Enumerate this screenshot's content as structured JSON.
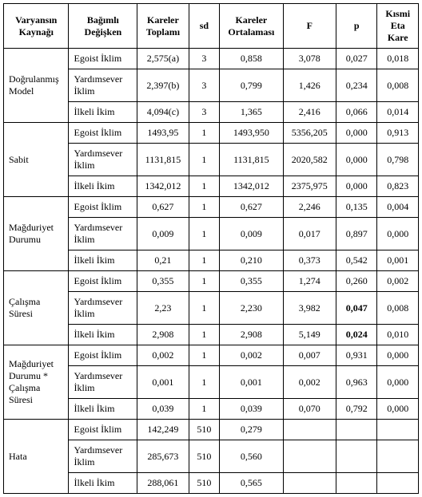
{
  "headers": {
    "c1": "Varyansın Kaynağı",
    "c2": "Bağımlı Değişken",
    "c3": "Kareler Toplamı",
    "c4": "sd",
    "c5": "Kareler Ortalaması",
    "c6": "F",
    "c7": "p",
    "c8": "Kısmi Eta Kare"
  },
  "groups": [
    {
      "source": "Doğrulanmış Model",
      "rows": [
        {
          "dv": "Egoist İklim",
          "ss": "2,575(a)",
          "sd": "3",
          "ms": "0,858",
          "f": "3,078",
          "p": "0,027",
          "eta": "0,018"
        },
        {
          "dv": "Yardımsever İklim",
          "ss": "2,397(b)",
          "sd": "3",
          "ms": "0,799",
          "f": "1,426",
          "p": "0,234",
          "eta": "0,008"
        },
        {
          "dv": "İlkeli İkim",
          "ss": "4,094(c)",
          "sd": "3",
          "ms": "1,365",
          "f": "2,416",
          "p": "0,066",
          "eta": "0,014"
        }
      ]
    },
    {
      "source": "Sabit",
      "rows": [
        {
          "dv": "Egoist İklim",
          "ss": "1493,95",
          "sd": "1",
          "ms": "1493,950",
          "f": "5356,205",
          "p": "0,000",
          "eta": "0,913"
        },
        {
          "dv": "Yardımsever İklim",
          "ss": "1131,815",
          "sd": "1",
          "ms": "1131,815",
          "f": "2020,582",
          "p": "0,000",
          "eta": "0,798"
        },
        {
          "dv": "İlkeli İkim",
          "ss": "1342,012",
          "sd": "1",
          "ms": "1342,012",
          "f": "2375,975",
          "p": "0,000",
          "eta": "0,823"
        }
      ]
    },
    {
      "source": "Mağduriyet Durumu",
      "rows": [
        {
          "dv": "Egoist İklim",
          "ss": "0,627",
          "sd": "1",
          "ms": "0,627",
          "f": "2,246",
          "p": "0,135",
          "eta": "0,004"
        },
        {
          "dv": "Yardımsever İklim",
          "ss": "0,009",
          "sd": "1",
          "ms": "0,009",
          "f": "0,017",
          "p": "0,897",
          "eta": "0,000"
        },
        {
          "dv": "İlkeli İkim",
          "ss": "0,21",
          "sd": "1",
          "ms": "0,210",
          "f": "0,373",
          "p": "0,542",
          "eta": "0,001"
        }
      ]
    },
    {
      "source": "Çalışma Süresi",
      "rows": [
        {
          "dv": "Egoist İklim",
          "ss": "0,355",
          "sd": "1",
          "ms": "0,355",
          "f": "1,274",
          "p": "0,260",
          "eta": "0,002"
        },
        {
          "dv": "Yardımsever İklim",
          "ss": "2,23",
          "sd": "1",
          "ms": "2,230",
          "f": "3,982",
          "p": "0,047",
          "pbold": true,
          "eta": "0,008"
        },
        {
          "dv": "İlkeli İkim",
          "ss": "2,908",
          "sd": "1",
          "ms": "2,908",
          "f": "5,149",
          "p": "0,024",
          "pbold": true,
          "eta": "0,010"
        }
      ]
    },
    {
      "source": "Mağduriyet Durumu * Çalışma Süresi",
      "rows": [
        {
          "dv": "Egoist İklim",
          "ss": "0,002",
          "sd": "1",
          "ms": "0,002",
          "f": "0,007",
          "p": "0,931",
          "eta": "0,000"
        },
        {
          "dv": "Yardımsever İklim",
          "ss": "0,001",
          "sd": "1",
          "ms": "0,001",
          "f": "0,002",
          "p": "0,963",
          "eta": "0,000"
        },
        {
          "dv": "İlkeli İkim",
          "ss": "0,039",
          "sd": "1",
          "ms": "0,039",
          "f": "0,070",
          "p": "0,792",
          "eta": "0,000"
        }
      ]
    },
    {
      "source": "Hata",
      "rows": [
        {
          "dv": "Egoist İklim",
          "ss": "142,249",
          "sd": "510",
          "ms": "0,279",
          "f": "",
          "p": "",
          "eta": ""
        },
        {
          "dv": "Yardımsever İklim",
          "ss": "285,673",
          "sd": "510",
          "ms": "0,560",
          "f": "",
          "p": "",
          "eta": ""
        },
        {
          "dv": "İlkeli İkim",
          "ss": "288,061",
          "sd": "510",
          "ms": "0,565",
          "f": "",
          "p": "",
          "eta": ""
        }
      ]
    }
  ]
}
